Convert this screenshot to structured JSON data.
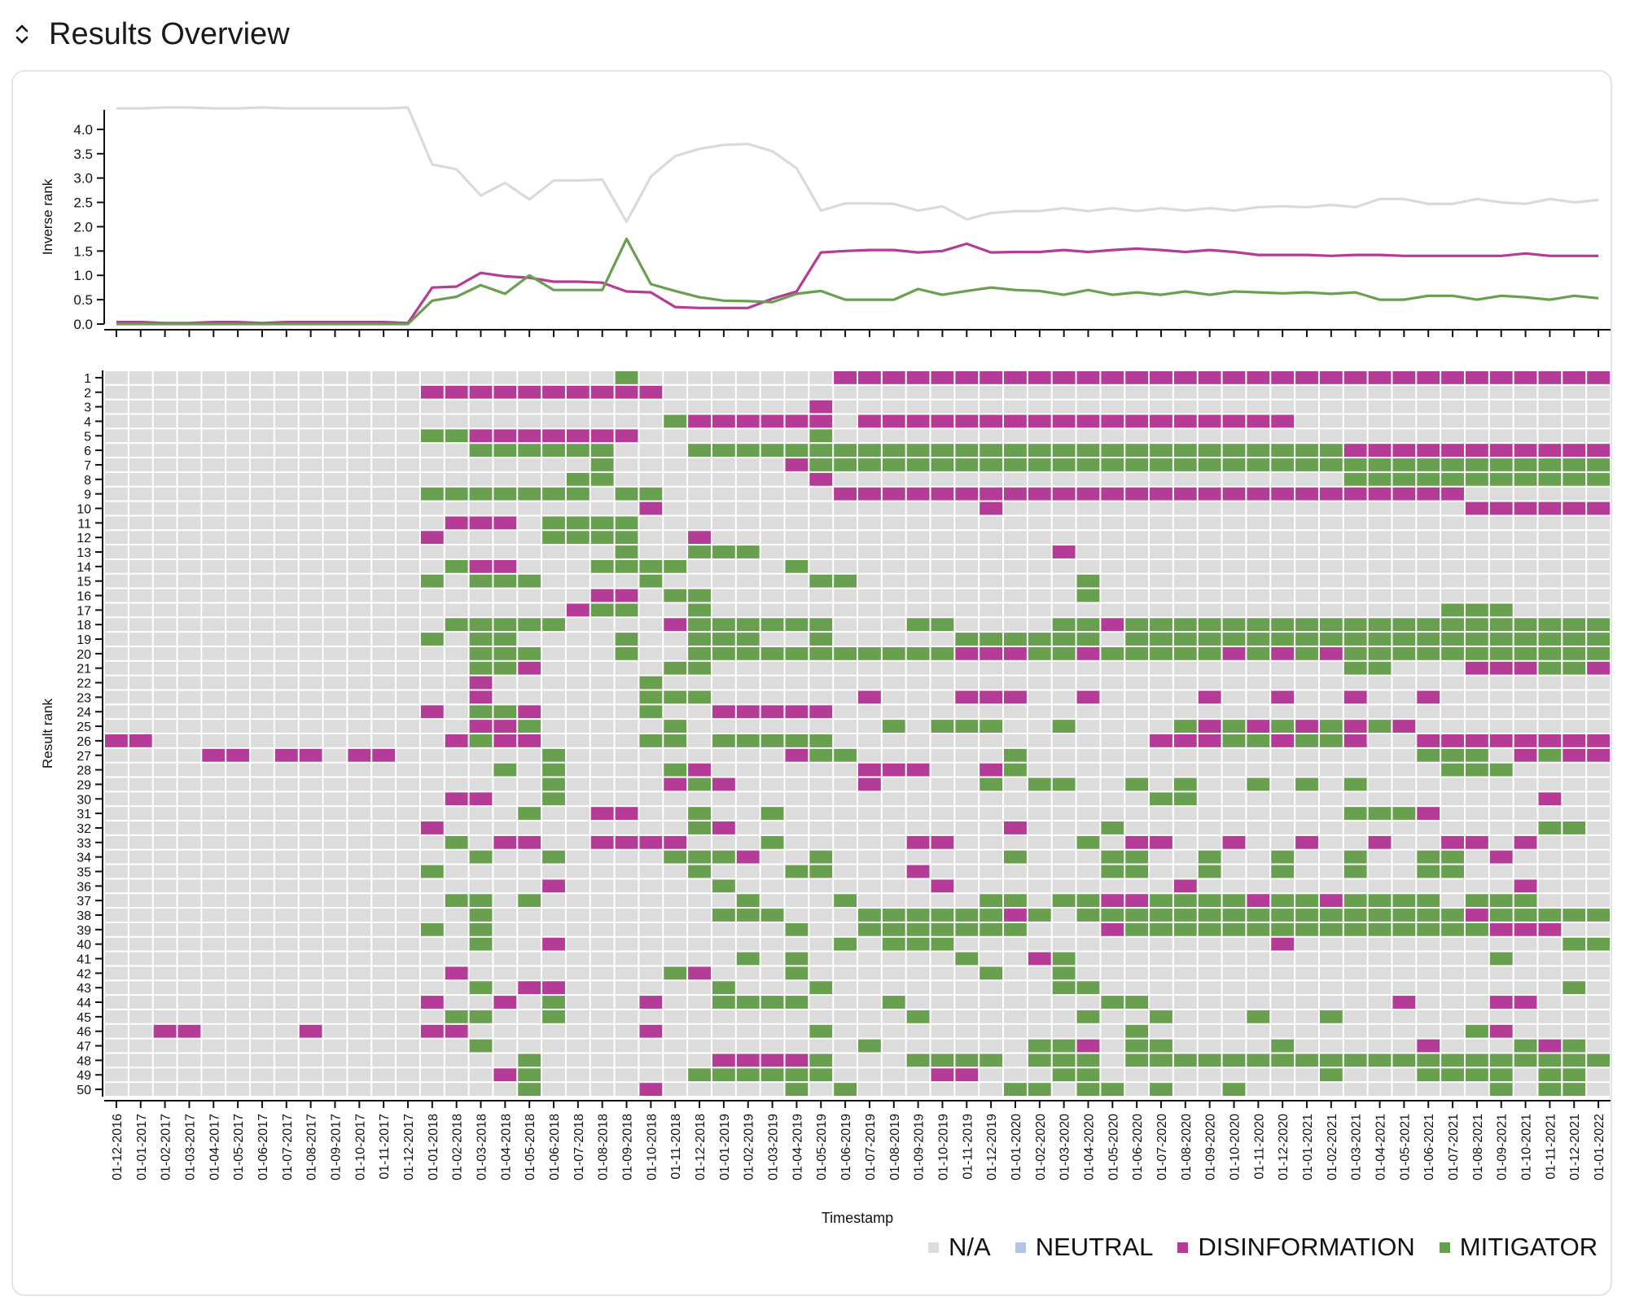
{
  "header": {
    "title": "Results Overview",
    "toggle_icon": "chevron-up-down-icon"
  },
  "colors": {
    "na": "#dcdcdc",
    "neutral": "#b4c3e3",
    "disinformation": "#b43c96",
    "mitigator": "#69a050"
  },
  "legend": {
    "items": [
      {
        "key": "na",
        "label": "N/A"
      },
      {
        "key": "neutral",
        "label": "NEUTRAL"
      },
      {
        "key": "disinformation",
        "label": "DISINFORMATION"
      },
      {
        "key": "mitigator",
        "label": "MITIGATOR"
      }
    ]
  },
  "chart_data": [
    {
      "type": "line",
      "ylabel": "Inverse rank",
      "ylim": [
        0,
        4.4
      ],
      "yticks": [
        0.0,
        0.5,
        1.0,
        1.5,
        2.0,
        2.5,
        3.0,
        3.5,
        4.0
      ],
      "grid": false,
      "x": [
        "01-12-2016",
        "01-01-2017",
        "01-02-2017",
        "01-03-2017",
        "01-04-2017",
        "01-05-2017",
        "01-06-2017",
        "01-07-2017",
        "01-08-2017",
        "01-09-2017",
        "01-10-2017",
        "01-11-2017",
        "01-12-2017",
        "01-01-2018",
        "01-02-2018",
        "01-03-2018",
        "01-04-2018",
        "01-05-2018",
        "01-06-2018",
        "01-07-2018",
        "01-08-2018",
        "01-09-2018",
        "01-10-2018",
        "01-11-2018",
        "01-12-2018",
        "01-01-2019",
        "01-02-2019",
        "01-03-2019",
        "01-04-2019",
        "01-05-2019",
        "01-06-2019",
        "01-07-2019",
        "01-08-2019",
        "01-09-2019",
        "01-10-2019",
        "01-11-2019",
        "01-12-2019",
        "01-01-2020",
        "01-02-2020",
        "01-03-2020",
        "01-04-2020",
        "01-05-2020",
        "01-06-2020",
        "01-07-2020",
        "01-08-2020",
        "01-09-2020",
        "01-10-2020",
        "01-11-2020",
        "01-12-2020",
        "01-01-2021",
        "01-02-2021",
        "01-03-2021",
        "01-04-2021",
        "01-05-2021",
        "01-06-2021",
        "01-07-2021",
        "01-08-2021",
        "01-09-2021",
        "01-10-2021",
        "01-11-2021",
        "01-12-2021",
        "01-01-2022"
      ],
      "series": [
        {
          "key": "na",
          "values": [
            4.43,
            4.43,
            4.45,
            4.45,
            4.43,
            4.43,
            4.45,
            4.43,
            4.43,
            4.43,
            4.43,
            4.43,
            4.45,
            3.28,
            3.18,
            2.64,
            2.9,
            2.56,
            2.95,
            2.95,
            2.97,
            2.1,
            3.03,
            3.45,
            3.6,
            3.68,
            3.7,
            3.55,
            3.2,
            2.33,
            2.48,
            2.48,
            2.47,
            2.33,
            2.42,
            2.15,
            2.28,
            2.32,
            2.32,
            2.38,
            2.32,
            2.38,
            2.32,
            2.38,
            2.33,
            2.38,
            2.33,
            2.4,
            2.42,
            2.4,
            2.45,
            2.4,
            2.57,
            2.57,
            2.47,
            2.47,
            2.57,
            2.5,
            2.47,
            2.57,
            2.5,
            2.55
          ]
        },
        {
          "key": "disinformation",
          "values": [
            0.04,
            0.04,
            0.02,
            0.02,
            0.04,
            0.04,
            0.02,
            0.04,
            0.04,
            0.04,
            0.04,
            0.04,
            0.02,
            0.75,
            0.77,
            1.05,
            0.98,
            0.95,
            0.87,
            0.87,
            0.85,
            0.67,
            0.65,
            0.35,
            0.33,
            0.33,
            0.33,
            0.52,
            0.67,
            1.47,
            1.5,
            1.52,
            1.52,
            1.47,
            1.5,
            1.65,
            1.47,
            1.48,
            1.48,
            1.52,
            1.48,
            1.52,
            1.55,
            1.52,
            1.48,
            1.52,
            1.48,
            1.42,
            1.42,
            1.42,
            1.4,
            1.42,
            1.42,
            1.4,
            1.4,
            1.4,
            1.4,
            1.4,
            1.45,
            1.4,
            1.4,
            1.4
          ]
        },
        {
          "key": "mitigator",
          "values": [
            0.0,
            0.0,
            0.0,
            0.0,
            0.0,
            0.0,
            0.0,
            0.0,
            0.0,
            0.0,
            0.0,
            0.0,
            0.0,
            0.48,
            0.56,
            0.8,
            0.62,
            1.0,
            0.7,
            0.7,
            0.7,
            1.75,
            0.82,
            0.68,
            0.55,
            0.48,
            0.47,
            0.45,
            0.62,
            0.68,
            0.5,
            0.5,
            0.5,
            0.72,
            0.6,
            0.68,
            0.75,
            0.7,
            0.68,
            0.6,
            0.7,
            0.6,
            0.65,
            0.6,
            0.67,
            0.6,
            0.67,
            0.65,
            0.63,
            0.65,
            0.62,
            0.65,
            0.5,
            0.5,
            0.58,
            0.58,
            0.5,
            0.58,
            0.55,
            0.5,
            0.58,
            0.53
          ]
        }
      ]
    },
    {
      "type": "heatmap",
      "xlabel": "Timestamp",
      "ylabel": "Result rank",
      "ranks": 50,
      "cells_note": "rows are result ranks 1..50; each string has one char per timestamp: n = N/A, d = DISINFORMATION, m = MITIGATOR",
      "rows": [
        "nnnnnnnnnnnnnnnnnnnnnmnnnnnnnndddddddddddddddddddddddddddddddddd",
        "nnnnnnnnnnnnnddddddddddnnnnnnnnnnnnnnnnnnnnnnnnnnnnnnnnnnnnnnnnn",
        "nnnnnnnnnnnnnnnnnnnnnnnnnnnnndnnnnnnnnnnnnnnnnnnnnnnnnnnnnnnnnnn",
        "nnnnnnnnnnnnnnnnnnnnnnnmddddddnddddddddddddddddddnnnnnnnnnnnnnnn",
        "nnnnnnnnnnnnnmmdddddddnnnnnnnmnnnnnnnnnnnnnnnnnnnnnnnnnnnnnnnnnn",
        "nnnnnnnnnnnnnnnmmmmmmnnnmmmmmmmmmmmmmmmmmmmmmmmmmmmddddddddddddd",
        "nnnnnnnnnnnnnnnnnnnnmnnnnnnndmmmmmmmmmmmmmmmmmmmmmmmmmmmmmmmmmnn",
        "nnnnnnnnnnnnnnnnnnnmmnnnnnnnndnnnnnnnnnnnnnnnnnnnnnmmmmmmmmmmmmm",
        "nnnnnnnnnnnnnmmmmmmmnmmnnnnnnnddddddddddddddddddddddddddnnnnnnnnmm",
        "nnnnnnnnnnnnnnnnnnnnnndnnnnnnnnnnnnndnnnnnnnnnnnnnnnnnnndddddddddd",
        "nnnnnnnnnnnnnndddnmmmmnnnnnnnnnnnnnnnnnnnnnnnnnnnnnnnnnnnnnnnnnn",
        "nnnnnnnnnnnnndnnnnmmmmnndnnnnnnnnnnnnnnnnnnnnnnnnnnnnnnnnnnnnnnn",
        "nnnnnnnnnnnnnnnnnnnnnmnnmmmnnnnnnnnnnnndnnnnnnnnnnnnnnnnnnnnnnnn",
        "nnnnnnnnnnnnnnmddnnnmmmmnnnnmnnnnnnnnnnnnnnnnnnnnnnnnnnnnnnnnnnn",
        "nnnnnnnnnnnnnmnmmmnnnnmnnnnnnmmnnnnnnnnnmnnnnnnnnnnnnnnnnnnnnnnn",
        "nnnnnnnnnnnnnnnnnnnnddnmmnnnnnnnnnnnnnnnmnnnnnnnnnnnnnnnnnnnnnnn",
        "nnnnnnnnnnnnnnnnnnndmmnnmnnnnnnnnnnnnnnnnnnnnnnnnnnnnnnmmmnnnnnn",
        "nnnnnnnnnnnnnnmmmmmnnnndmmmmmmnnnmmnnnnmmdmmmmmmmmmmmmmmmmmmmmmm",
        "nnnnnnnnnnnnnmnmmnnnnmnnmmmnnmnnnnnmmmmmmnmmmmmmmmmmmmmmmmmmmmmm",
        "nnnnnnnnnnnnnnnmmmnnnmnnmmmmmmmmmmmdddmmdmmmmmdmdmdmmmmmmmmmmmmmm",
        "nnnnnnnnnnnnnnnmmdnnnnnmmnnnnnnnnnnnnnnnnnnnnnnnnnnmmnnndddmmdmmdnd",
        "nnnnnnnnnnnnnnndnnnnnnmnnnnnnnnnnnnnnnnnnnnnnnnnnnnnnnnnnnnnnnnn",
        "nnnnnnnnnnnnnnndnnnnnnmmmnnnnnndnnndddnndnnnndnndnndnndnnnnnnnnn",
        "nnnnnnnnnnnnndnmmdnnnnmnndddddnnnnnnnnnnnnnnnnnnnnnnnnnnnnnnnnnn",
        "nnnnnnnnnnnnnnnddmnnnnnmnnnnnnnnmnmmmnnmnnnnmdmdmdmdmdnnnnnnnnnn",
        "ddnnnnnnnnnnnndmddnnnnmmnmmmmmnnnnnnnnnnnnndddmmdmmdnnddddddddddd",
        "nnnnddnddnddnnnnnnmnnnnnnnnndmmnnnnnnmnnnnnnnnnnnnnnnnmmmndmdddmn",
        "nnnnnnnnnnnnnnnnmnmnnnnmdnnnnnndddnndmnnnnnnnnnnnnnnnnnmmmnnnnnmnm",
        "nnnnnnnnnnnnnnnnnnmnnnndmdnnnnndnnnnmnmmnnmnmnnmnmnmnnnnnnnnnnnnm",
        "nnnnnnnnnnnnnnddnnmnnnnnnnnnnnnnnnnnnnnnnnnmmnnnnnnnnnnnnnndnnndnnnd",
        "nnnnnnnnnnnnnnnnnmnnddnnmnnmnnnnnnnnnnnnnnnnnnnnnnnmmmdnnnnnnnmm",
        "nnnnnnnnnnnnndnnnnnnnnnnmdnnnnnnnnnnndnnnmnnnnnnnnnnnnnnnnnmmnnmmnnn",
        "nnnnnnnnnnnnnnmnddnnddddnnnmnnnnnddnnnnnmnddnndnndnndnnddndnnnnnnnmn",
        "nnnnnnnnnnnnnnnmnnmnnnnmmmdnnmnnnnnnnmnnnmmnnmnnmnnmnnmmndnnnnnmnmmnd",
        "nnnnnnnnnnnnnmnnnnnnnnnnmnnnmmnnndnnnnnnnmmnnmnnmnnmnnmmnnnnnnnddnnddnn",
        "nnnnnnnnnnnnnnnnnndnnnnnnmnnnnnnnndnnnnnnnnndnnnnnnnnnnnnndnnndnnnnnmmnn",
        "nnnnnnnnnnnnnnmmnmnnnnnnnnmnnnmnnnnnmmnmmddmmmmdmmdmmmmnmmmnnnnmmnnnnmmn",
        "nnnnnnnnnnnnnnnmnnnnnnnnnmmmnnnmmmmmmdmnmmmmmmmmmmmmmmmmdmmmmmnnnddmmmddmdm",
        "nnnnnnnnnnnnnmnmnnnnnnnnnnnnmnnmmmmmmmnnndmmmmmmmmmmmmmmmdddnnnnnddmddmmmdm",
        "nnnnnnnnnnnnnnnmnndnnnnnnnnnnnmnmmmnnnnnnnnnnnnndnnnnnnnnnnnmmmmmmmmmmmmmmm",
        "nnnnnnnnnnnnnnnnnnnnnnnnnnmnmnnnnnnmnndmnnnnnnnnnnnnnnnnnmnnnnnnmmnnnnmnmdmn",
        "nnnnnnnnnnnnnndnnnnnnnnmdnnnmnnnnnnnmnnmnnnnnnnnnnnnnnnnnnnnnnnnnnnnnnnnnnn",
        "nnnnnnnnnnnnnnnmnddnnnnnnmnnnmnnnnnnnnnmmnnnnnnnnnnnnnnnnnnnmnnnnnnnnnnnnnn",
        "nnnnnnnnnnnnndnndnmnnndnnmmmmnnnmnnnnnnnnmmnnnnnnnnnndnnnddnnnnnnnnnnnnmnnn",
        "nnnnnnnnnnnnnnmmnnmnnnnnnnnnnnnnnmnnnnnnmnnmnnnmnnmnnnnnnnnnnnndnnnnnnnnnnnn",
        "nnddnnnndnnnnddnnnnnnndnnnnnnmnnnnnnnnnnnnmnnnnnnnnnnnnnmdnnnndddmmmmdmmdmd",
        "nnnnnnnnnnnnnnnmnnnnnnnnnnnnnnnmnnnnnnmmdnmmnnnnmnnnnndnnnmdmnnnnndddddmddmdnn",
        "nnnnnnnnnnnnnnnnnmnnnnnnnddddmnnnmmmmnmmmnmmmmmmmmmmmmmmmmmmmmnnnnmmnnmmnnnn",
        "nnnnnnnnnnnnnnnndmnnnnnnmmmmmmnnnnddnnnmmnnnnnnnnnmnnnmmmmnmmnnnnnnnnnnnnn",
        "nnnnnnnnnnnnnnnnnmnnnndnnnnnmnmnnnnnnmmnmmnmnnmnnnnnnnnnnmnmmnnnnnmmnnmdnnmn"
      ]
    }
  ]
}
